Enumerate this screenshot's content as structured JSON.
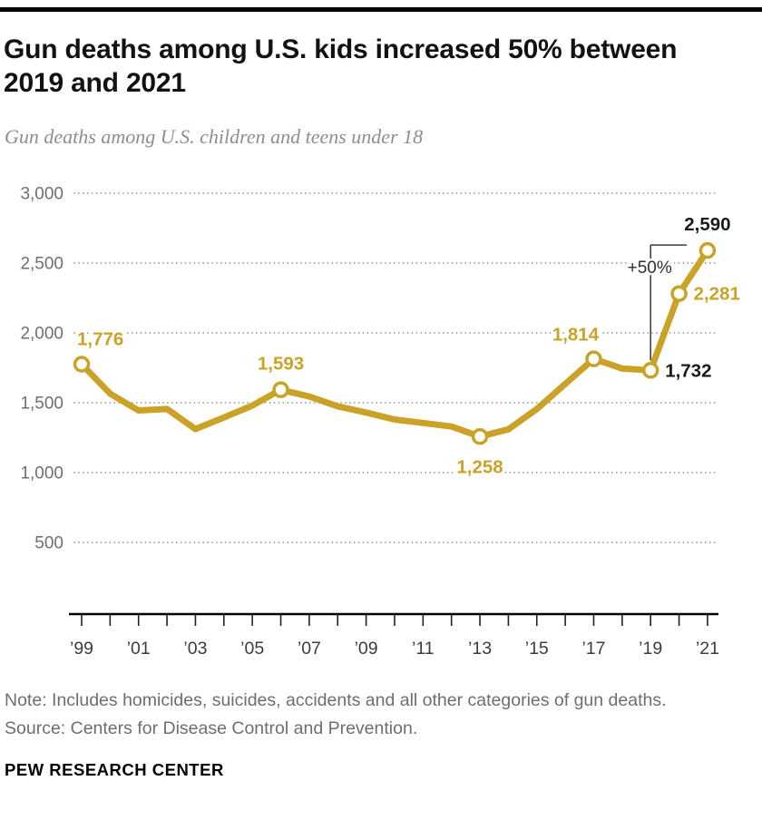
{
  "header": {
    "title": "Gun deaths among U.S. kids increased 50% between 2019 and 2021",
    "title_lines": [
      "Gun deaths among U.S. kids increased 50% between",
      "2019 and 2021"
    ],
    "subtitle": "Gun deaths among U.S. children and teens under 18"
  },
  "chart_data": {
    "type": "line",
    "title": "Gun deaths among U.S. children and teens under 18",
    "x": [
      1999,
      2000,
      2001,
      2002,
      2003,
      2004,
      2005,
      2006,
      2007,
      2008,
      2009,
      2010,
      2011,
      2012,
      2013,
      2014,
      2015,
      2016,
      2017,
      2018,
      2019,
      2020,
      2021
    ],
    "values": [
      1776,
      1565,
      1445,
      1455,
      1312,
      1395,
      1480,
      1593,
      1545,
      1475,
      1430,
      1380,
      1355,
      1330,
      1258,
      1310,
      1455,
      1635,
      1814,
      1745,
      1732,
      2281,
      2590
    ],
    "x_tick_labels": [
      "’99",
      "’01",
      "’03",
      "’05",
      "’07",
      "’09",
      "’11",
      "’13",
      "’15",
      "’17",
      "’19",
      "’21"
    ],
    "y_ticks": [
      3000,
      2500,
      2000,
      1500,
      1000,
      500
    ],
    "ylim": [
      0,
      3000
    ],
    "grid": "dotted-horizontal",
    "legend": "none",
    "line_color": "#C9A227",
    "dark_label_color": "#1a1a1a",
    "labeled_points": [
      {
        "year": 1999,
        "value": 1776,
        "label": "1,776",
        "emphasis": "gold",
        "placement": "above-right"
      },
      {
        "year": 2006,
        "value": 1593,
        "label": "1,593",
        "emphasis": "gold",
        "placement": "above"
      },
      {
        "year": 2013,
        "value": 1258,
        "label": "1,258",
        "emphasis": "gold",
        "placement": "below"
      },
      {
        "year": 2017,
        "value": 1814,
        "label": "1,814",
        "emphasis": "gold",
        "placement": "above-left"
      },
      {
        "year": 2019,
        "value": 1732,
        "label": "1,732",
        "emphasis": "black",
        "placement": "right"
      },
      {
        "year": 2020,
        "value": 2281,
        "label": "2,281",
        "emphasis": "gold",
        "placement": "right"
      },
      {
        "year": 2021,
        "value": 2590,
        "label": "2,590",
        "emphasis": "black",
        "placement": "above"
      }
    ],
    "annotation": {
      "text": "+50%",
      "from_year": 2019,
      "to_year": 2021
    }
  },
  "footer": {
    "note": "Note: Includes homicides, suicides, accidents and all other categories of gun deaths.",
    "source": "Source: Centers for Disease Control and Prevention.",
    "brand": "PEW RESEARCH CENTER"
  }
}
